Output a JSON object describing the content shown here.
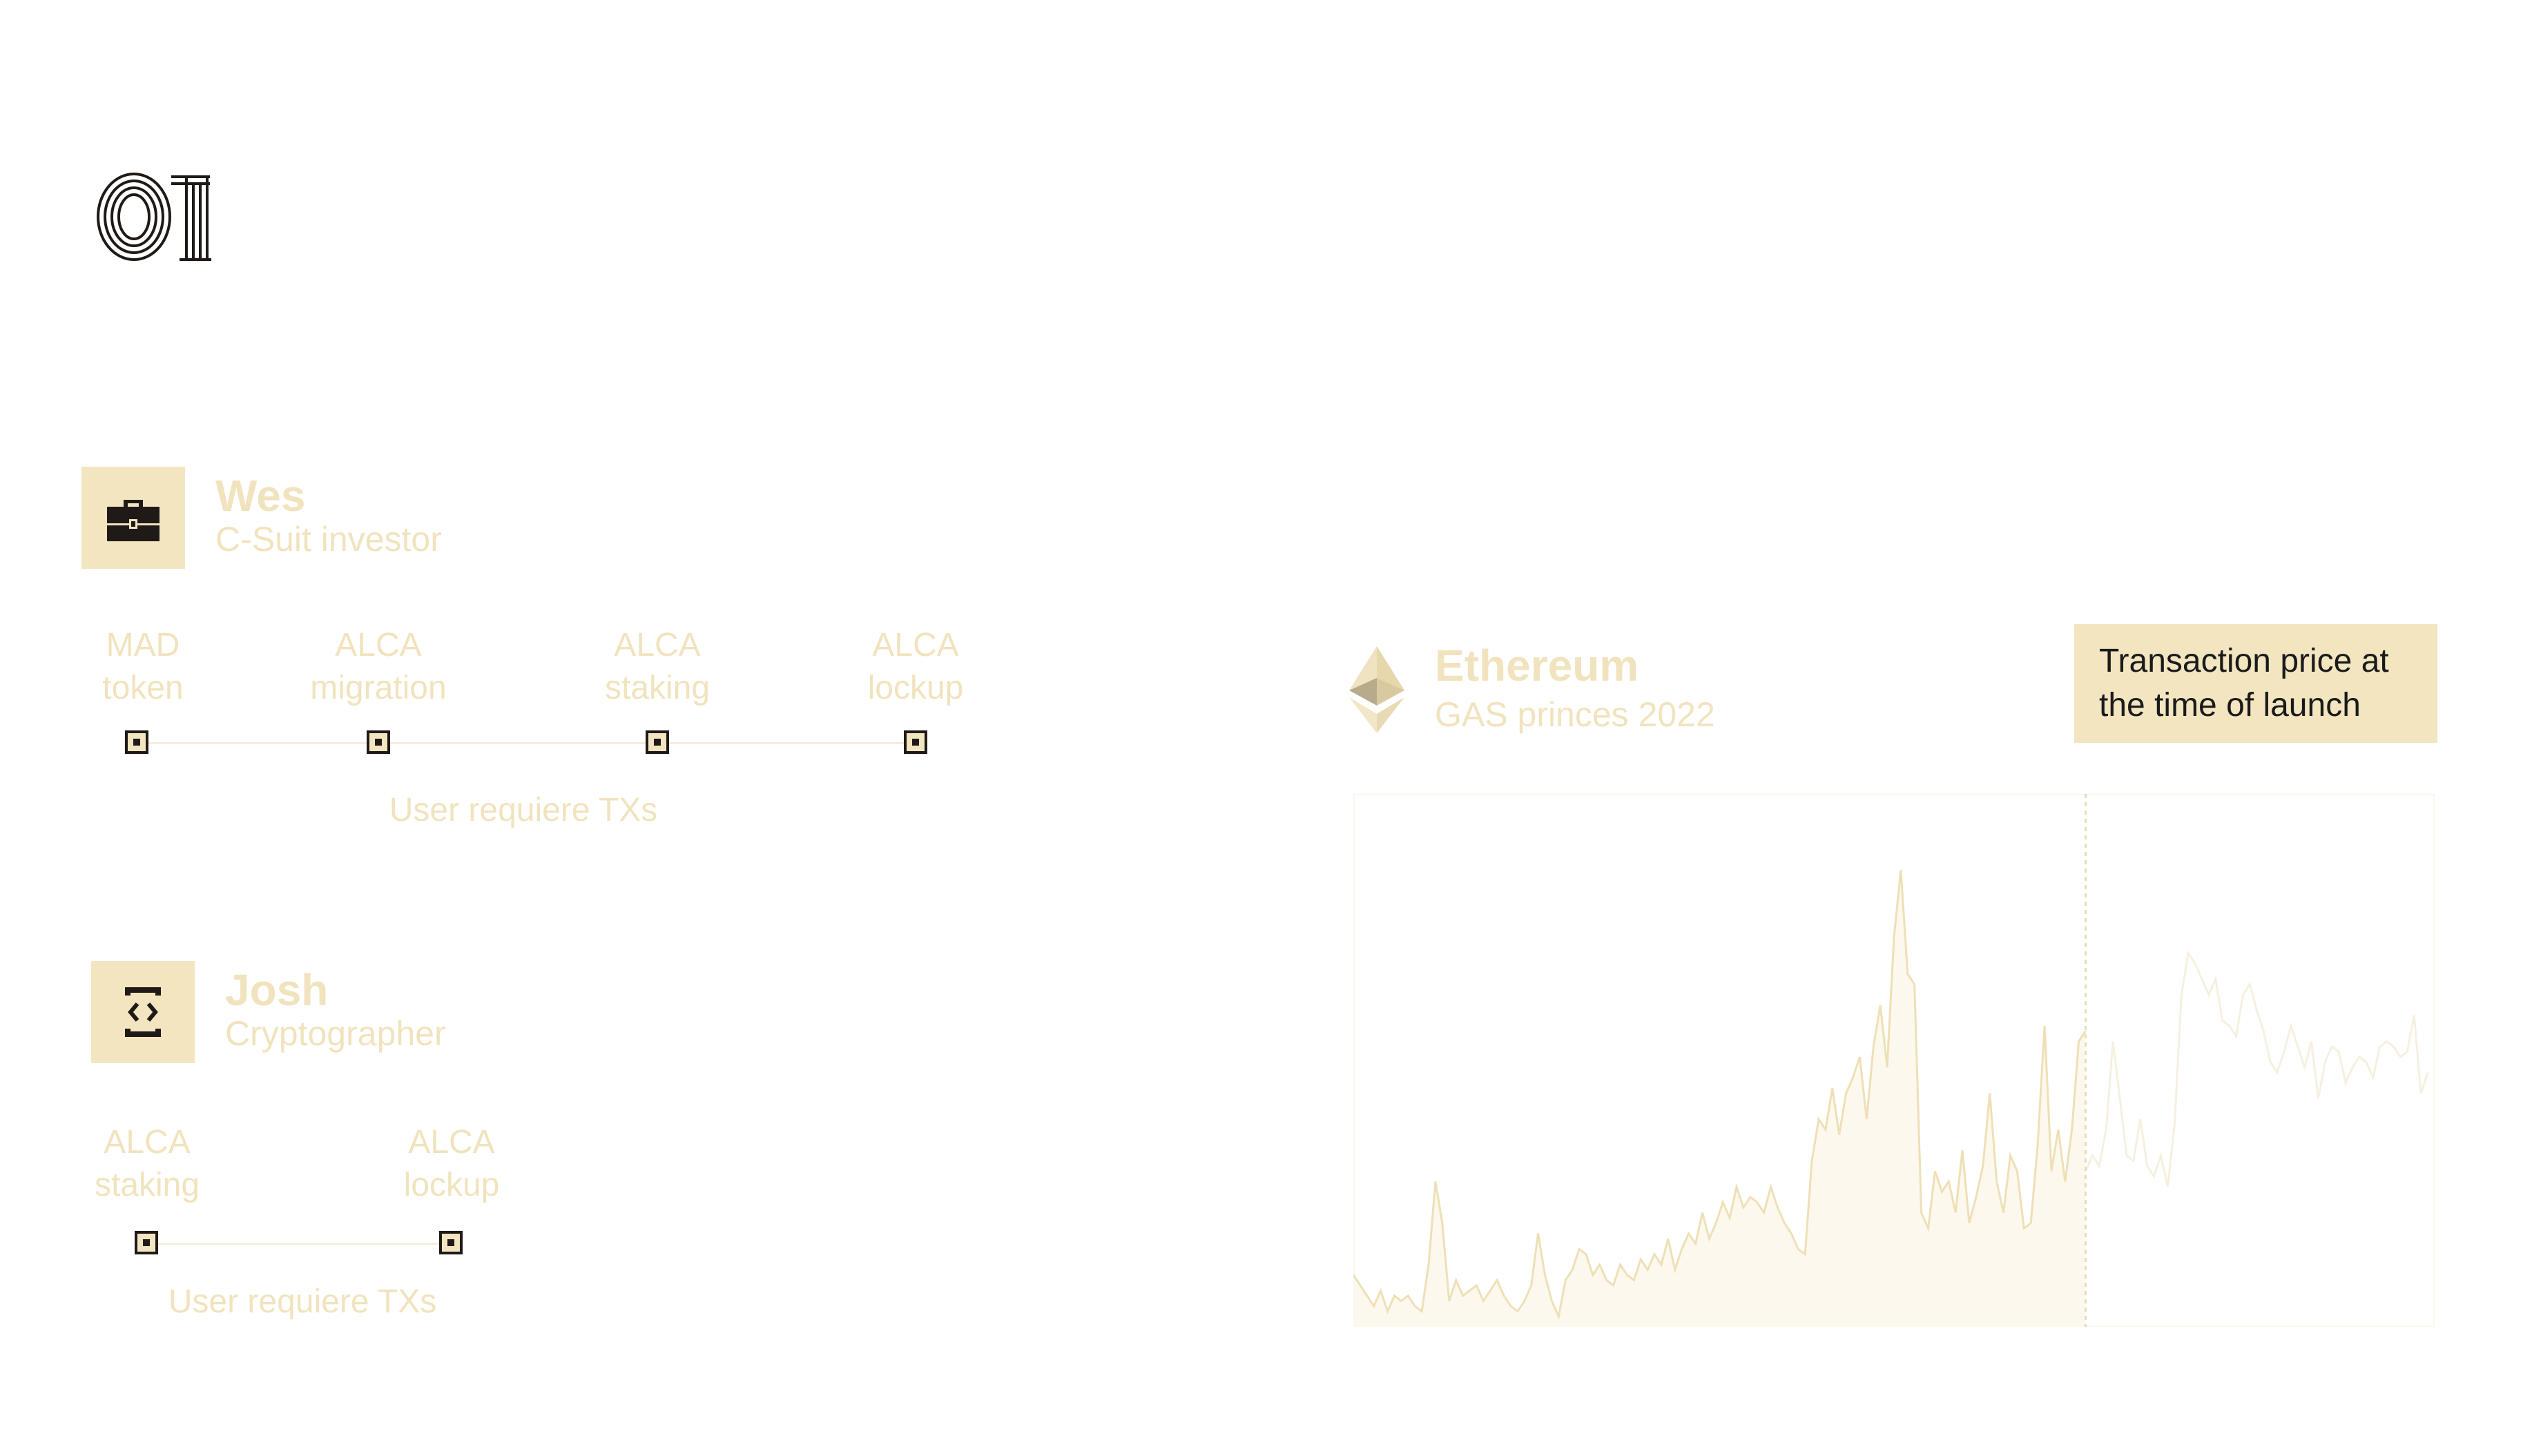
{
  "section_number": "01",
  "colors": {
    "accent_fill": "#f2e5c0",
    "muted_text": "#f1e3bd",
    "dark": "#1f1a17",
    "chart_line_past": "#eee0b6",
    "chart_line_future": "#f6f0df"
  },
  "personas": [
    {
      "name": "Wes",
      "role": "C-Suit investor",
      "icon": "briefcase-icon",
      "steps": [
        {
          "line1": "MAD",
          "line2": "token"
        },
        {
          "line1": "ALCA",
          "line2": "migration"
        },
        {
          "line1": "ALCA",
          "line2": "staking"
        },
        {
          "line1": "ALCA",
          "line2": "lockup"
        }
      ],
      "caption": "User requiere TXs"
    },
    {
      "name": "Josh",
      "role": "Cryptographer",
      "icon": "code-brackets-icon",
      "steps": [
        {
          "line1": "ALCA",
          "line2": "staking"
        },
        {
          "line1": "ALCA",
          "line2": "lockup"
        }
      ],
      "caption": "User requiere TXs"
    }
  ],
  "chart": {
    "logo_icon": "ethereum-icon",
    "title": "Ethereum",
    "subtitle": "GAS princes 2022",
    "callout_line1": "Transaction price at",
    "callout_line2": "the time of launch"
  },
  "chart_data": {
    "type": "area",
    "title": "Ethereum",
    "subtitle": "GAS princes 2022",
    "xlabel": "",
    "ylabel": "",
    "grid": false,
    "legend": "none",
    "ylim": [
      0,
      100
    ],
    "xlim": [
      0,
      155
    ],
    "launch_index": 105,
    "series": [
      {
        "values": [
          10,
          8,
          6,
          4,
          7,
          3,
          6,
          5,
          6,
          4,
          3,
          12,
          28,
          20,
          5,
          9,
          6,
          7,
          8,
          5,
          7,
          9,
          6,
          4,
          3,
          5,
          8,
          18,
          10,
          5,
          2,
          9,
          11,
          15,
          14,
          10,
          12,
          9,
          8,
          12,
          10,
          9,
          13,
          11,
          14,
          12,
          17,
          11,
          15,
          18,
          16,
          22,
          17,
          20,
          24,
          21,
          27,
          23,
          25,
          24,
          22,
          27,
          23,
          20,
          18,
          15,
          14,
          32,
          40,
          38,
          46,
          37,
          45,
          48,
          52,
          40,
          54,
          62,
          50,
          75,
          88,
          68,
          66,
          22,
          19,
          30,
          26,
          28,
          22,
          34,
          20,
          25,
          31,
          45,
          28,
          22,
          33,
          30,
          19,
          20,
          35,
          58,
          30,
          38,
          28,
          38,
          55,
          57
        ],
        "future_values": [
          30,
          33,
          31,
          38,
          55,
          44,
          33,
          32,
          40,
          31,
          29,
          33,
          27,
          39,
          64,
          72,
          70,
          67,
          64,
          67,
          59,
          58,
          56,
          64,
          66,
          61,
          57,
          51,
          49,
          53,
          58,
          54,
          50,
          55,
          44,
          51,
          54,
          53,
          47,
          50,
          52,
          51,
          48,
          54,
          55,
          54,
          52,
          53,
          60,
          45,
          49
        ]
      }
    ]
  }
}
